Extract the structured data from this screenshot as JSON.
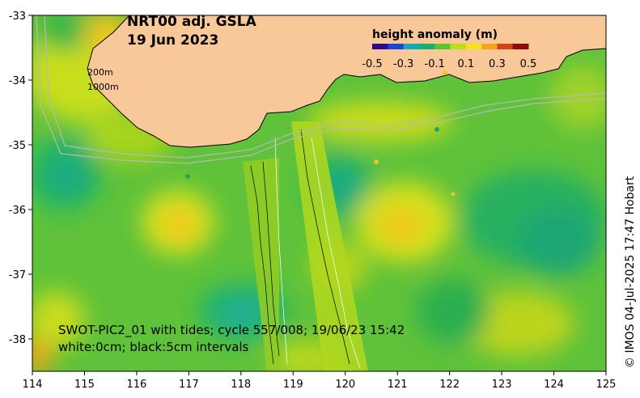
{
  "title": {
    "line1": "NRT00 adj. GSLA",
    "line2": "19 Jun 2023"
  },
  "colorbar": {
    "title": "height anomaly (m)",
    "ticks": [
      "-0.5",
      "-0.3",
      "-0.1",
      "0.1",
      "0.3",
      "0.5"
    ],
    "colors": [
      "#2b0a8c",
      "#1a46d8",
      "#18a8b8",
      "#19b06e",
      "#5ec42a",
      "#bcdc1c",
      "#f4e21e",
      "#f3a51b",
      "#d04515",
      "#8c0c0c"
    ]
  },
  "axes": {
    "x_ticks": [
      "114",
      "115",
      "116",
      "117",
      "118",
      "119",
      "120",
      "121",
      "122",
      "123",
      "124",
      "125"
    ],
    "y_ticks": [
      "-33",
      "-34",
      "-35",
      "-36",
      "-37",
      "-38"
    ],
    "x_range": [
      114,
      125
    ],
    "y_range": [
      -38.5,
      -33
    ]
  },
  "isobaths": {
    "label_200": "200m",
    "label_1000": "1000m"
  },
  "swot_note": {
    "line1": "SWOT-PIC2_01 with tides; cycle 557/008; 19/06/23 15:42",
    "line2": "white:0cm; black:5cm intervals"
  },
  "credit": "© IMOS 04-Jul-2025 17:47 Hobart",
  "colors": {
    "land": "#f9c898",
    "sea_base": "#5fc23a"
  }
}
